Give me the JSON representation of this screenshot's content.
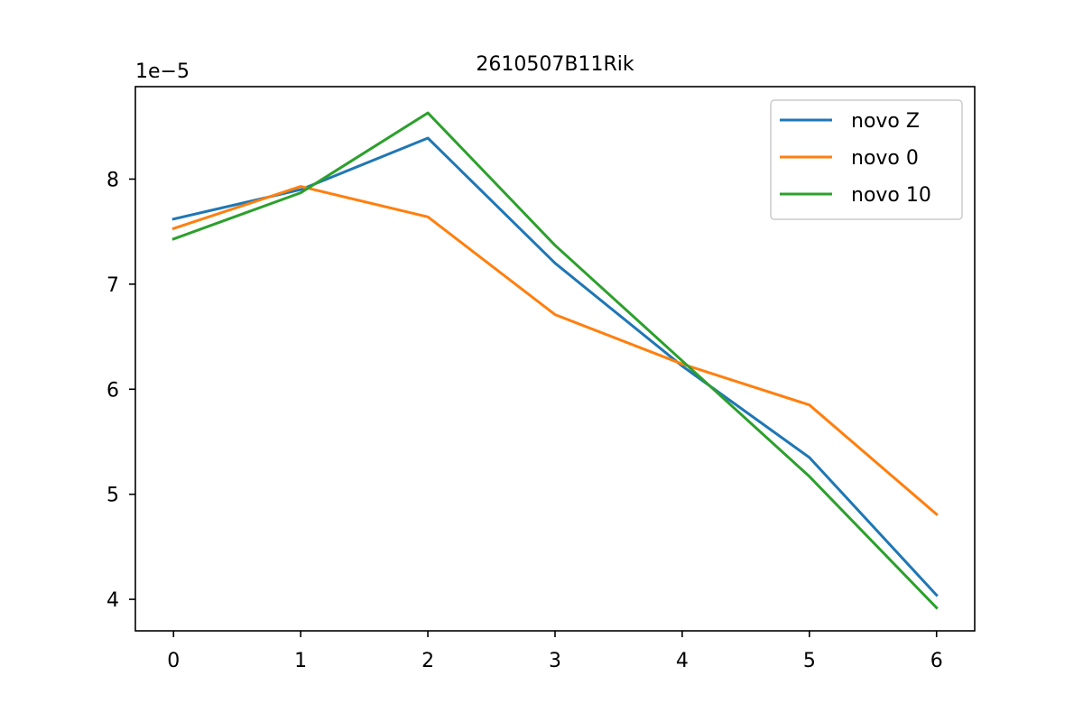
{
  "chart_data": {
    "type": "line",
    "title": "2610507B11Rik",
    "x": [
      0,
      1,
      2,
      3,
      4,
      5,
      6
    ],
    "x_ticks": [
      "0",
      "1",
      "2",
      "3",
      "4",
      "5",
      "6"
    ],
    "y_ticks": [
      "4",
      "5",
      "6",
      "7",
      "8"
    ],
    "y_offset_label": "1e−5",
    "xlim": [
      -0.3,
      6.3
    ],
    "ylim": [
      3.7,
      8.88
    ],
    "grid": false,
    "legend_position": "top-right",
    "series": [
      {
        "name": "novo Z",
        "color": "#1f77b4",
        "values": [
          7.62,
          7.9,
          8.39,
          7.2,
          6.22,
          5.35,
          4.04
        ]
      },
      {
        "name": "novo 0",
        "color": "#ff7f0e",
        "values": [
          7.53,
          7.93,
          7.64,
          6.71,
          6.24,
          5.85,
          4.81
        ]
      },
      {
        "name": "novo 10",
        "color": "#2ca02c",
        "values": [
          7.43,
          7.87,
          8.63,
          7.37,
          6.27,
          5.17,
          3.92
        ]
      }
    ]
  }
}
